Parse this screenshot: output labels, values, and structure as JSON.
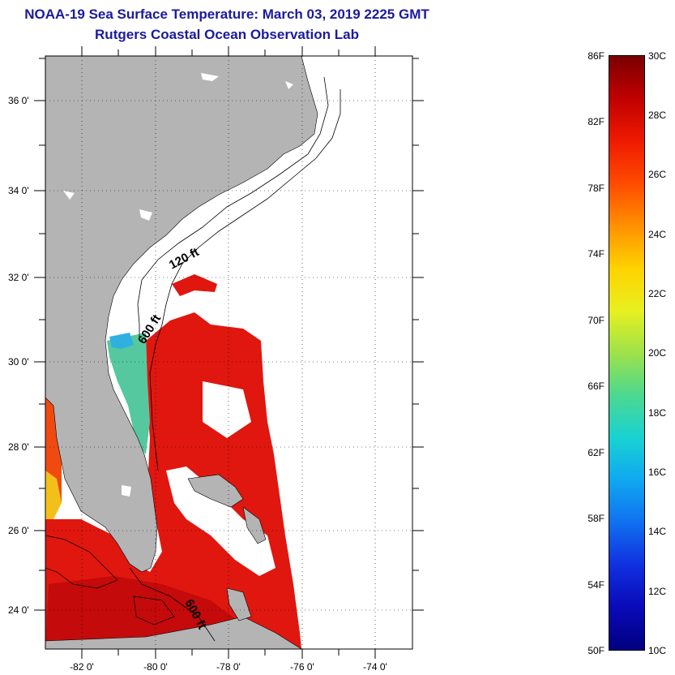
{
  "title": {
    "line1": "NOAA-19 Sea Surface Temperature:  March 03, 2019 2225 GMT",
    "line2": "Rutgers Coastal Ocean Observation Lab"
  },
  "map": {
    "lat_labels": [
      "36 0'",
      "34 0'",
      "32 0'",
      "30 0'",
      "28 0'",
      "26 0'",
      "24 0'"
    ],
    "lon_labels": [
      "-82 0'",
      "-80 0'",
      "-78 0'",
      "-76 0'",
      "-74 0'"
    ],
    "contour_labels": [
      "120 ft",
      "600 ft",
      "600 ft"
    ]
  },
  "colorbar": {
    "fahrenheit": [
      "86F",
      "82F",
      "78F",
      "74F",
      "70F",
      "66F",
      "62F",
      "58F",
      "54F",
      "50F"
    ],
    "celsius": [
      "30C",
      "28C",
      "26C",
      "24C",
      "22C",
      "20C",
      "18C",
      "16C",
      "14C",
      "12C",
      "10C"
    ],
    "colors": [
      "#7a0000",
      "#c00000",
      "#ee1a00",
      "#ff4a00",
      "#ff9000",
      "#ffd200",
      "#e8f020",
      "#9ee24a",
      "#4cd890",
      "#18d2d2",
      "#10a8f0",
      "#1070f0",
      "#1030e0",
      "#0a0ab8",
      "#000080"
    ]
  },
  "colors": {
    "land": "#b4b4b4",
    "sst_warm": "#e0170f",
    "sst_hot": "#c40a0a",
    "title": "#1a1aa0"
  }
}
